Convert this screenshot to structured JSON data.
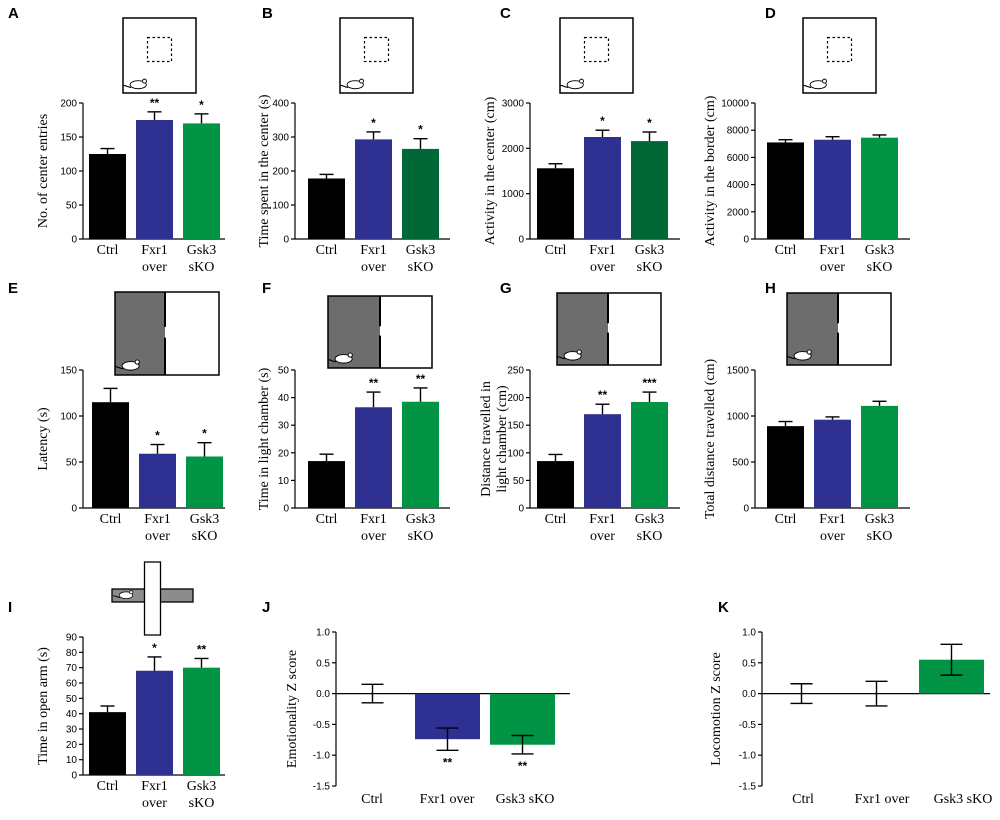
{
  "colors": {
    "ctrl": "#000000",
    "fxr1": "#2e3192",
    "gsk3": "#009444",
    "gsk3_dark": "#006837",
    "chamber_dark": "#6d6d6d",
    "arm_gray": "#8c8c8c"
  },
  "chart_data": [
    {
      "panel": "A",
      "type": "bar",
      "title": "",
      "xlabel": "",
      "ylabel": "No. of center entries",
      "ylim": [
        0,
        200
      ],
      "yticks": [
        0,
        50,
        100,
        150,
        200
      ],
      "categories": [
        "Ctrl",
        "Fxr1 over",
        "Gsk3 sKO"
      ],
      "series": [
        {
          "name": "mean",
          "values": [
            125,
            175,
            170
          ]
        }
      ],
      "errors": [
        8,
        12,
        14
      ],
      "significance": [
        "",
        "**",
        "*"
      ],
      "bar_colors": [
        "ctrl",
        "fxr1",
        "gsk3"
      ],
      "icon": "open-field"
    },
    {
      "panel": "B",
      "type": "bar",
      "title": "",
      "xlabel": "",
      "ylabel": "Time spent in the center (s)",
      "ylim": [
        0,
        400
      ],
      "yticks": [
        0,
        100,
        200,
        300,
        400
      ],
      "categories": [
        "Ctrl",
        "Fxr1 over",
        "Gsk3 sKO"
      ],
      "series": [
        {
          "name": "mean",
          "values": [
            178,
            293,
            265
          ]
        }
      ],
      "errors": [
        12,
        22,
        30
      ],
      "significance": [
        "",
        "*",
        "*"
      ],
      "bar_colors": [
        "ctrl",
        "fxr1",
        "gsk3_dark"
      ],
      "icon": "open-field"
    },
    {
      "panel": "C",
      "type": "bar",
      "title": "",
      "xlabel": "",
      "ylabel": "Activity in the center (cm)",
      "ylim": [
        0,
        3000
      ],
      "yticks": [
        0,
        1000,
        2000,
        3000
      ],
      "categories": [
        "Ctrl",
        "Fxr1 over",
        "Gsk3 sKO"
      ],
      "series": [
        {
          "name": "mean",
          "values": [
            1560,
            2250,
            2160
          ]
        }
      ],
      "errors": [
        100,
        150,
        200
      ],
      "significance": [
        "",
        "*",
        "*"
      ],
      "bar_colors": [
        "ctrl",
        "fxr1",
        "gsk3_dark"
      ],
      "icon": "open-field"
    },
    {
      "panel": "D",
      "type": "bar",
      "title": "",
      "xlabel": "",
      "ylabel": "Activity in the border (cm)",
      "ylim": [
        0,
        10000
      ],
      "yticks": [
        0,
        2000,
        4000,
        6000,
        8000,
        10000
      ],
      "categories": [
        "Ctrl",
        "Fxr1 over",
        "Gsk3 sKO"
      ],
      "series": [
        {
          "name": "mean",
          "values": [
            7100,
            7300,
            7450
          ]
        }
      ],
      "errors": [
        200,
        220,
        200
      ],
      "significance": [
        "",
        "",
        ""
      ],
      "bar_colors": [
        "ctrl",
        "fxr1",
        "gsk3"
      ],
      "icon": "open-field"
    },
    {
      "panel": "E",
      "type": "bar",
      "title": "",
      "xlabel": "",
      "ylabel": "Latency (s)",
      "ylim": [
        0,
        150
      ],
      "yticks": [
        0,
        50,
        100,
        150
      ],
      "categories": [
        "Ctrl",
        "Fxr1 over",
        "Gsk3 sKO"
      ],
      "series": [
        {
          "name": "mean",
          "values": [
            115,
            59,
            56
          ]
        }
      ],
      "errors": [
        15,
        10,
        15
      ],
      "significance": [
        "",
        "*",
        "*"
      ],
      "bar_colors": [
        "ctrl",
        "fxr1",
        "gsk3"
      ],
      "icon": "light-dark"
    },
    {
      "panel": "F",
      "type": "bar",
      "title": "",
      "xlabel": "",
      "ylabel": "Time in light chamber (s)",
      "ylim": [
        0,
        50
      ],
      "yticks": [
        0,
        10,
        20,
        30,
        40,
        50
      ],
      "categories": [
        "Ctrl",
        "Fxr1 over",
        "Gsk3 sKO"
      ],
      "series": [
        {
          "name": "mean",
          "values": [
            17,
            36.5,
            38.5
          ]
        }
      ],
      "errors": [
        2.5,
        5.5,
        5
      ],
      "significance": [
        "",
        "**",
        "**"
      ],
      "bar_colors": [
        "ctrl",
        "fxr1",
        "gsk3"
      ],
      "icon": "light-dark"
    },
    {
      "panel": "G",
      "type": "bar",
      "title": "",
      "xlabel": "",
      "ylabel": "Distance travelled in light chamber (cm)",
      "ylim": [
        0,
        250
      ],
      "yticks": [
        0,
        50,
        100,
        150,
        200,
        250
      ],
      "categories": [
        "Ctrl",
        "Fxr1 over",
        "Gsk3 sKO"
      ],
      "series": [
        {
          "name": "mean",
          "values": [
            85,
            170,
            192
          ]
        }
      ],
      "errors": [
        12,
        18,
        18
      ],
      "significance": [
        "",
        "**",
        "***"
      ],
      "bar_colors": [
        "ctrl",
        "fxr1",
        "gsk3"
      ],
      "icon": "light-dark"
    },
    {
      "panel": "H",
      "type": "bar",
      "title": "",
      "xlabel": "",
      "ylabel": "Total distance travelled (cm)",
      "ylim": [
        0,
        1500
      ],
      "yticks": [
        0,
        500,
        1000,
        1500
      ],
      "categories": [
        "Ctrl",
        "Fxr1 over",
        "Gsk3 sKO"
      ],
      "series": [
        {
          "name": "mean",
          "values": [
            890,
            960,
            1110
          ]
        }
      ],
      "errors": [
        50,
        30,
        50
      ],
      "significance": [
        "",
        "",
        ""
      ],
      "bar_colors": [
        "ctrl",
        "fxr1",
        "gsk3"
      ],
      "icon": "light-dark"
    },
    {
      "panel": "I",
      "type": "bar",
      "title": "",
      "xlabel": "",
      "ylabel": "Time in open arm (s)",
      "ylim": [
        0,
        90
      ],
      "yticks": [
        0,
        10,
        20,
        30,
        40,
        50,
        60,
        70,
        80,
        90
      ],
      "categories": [
        "Ctrl",
        "Fxr1 over",
        "Gsk3 sKO"
      ],
      "series": [
        {
          "name": "mean",
          "values": [
            41,
            68,
            70
          ]
        }
      ],
      "errors": [
        4,
        9,
        6
      ],
      "significance": [
        "",
        "*",
        "**"
      ],
      "bar_colors": [
        "ctrl",
        "fxr1",
        "gsk3"
      ],
      "icon": "plus-maze"
    },
    {
      "panel": "J",
      "type": "bar",
      "title": "",
      "xlabel": "",
      "ylabel": "Emotionality Z score",
      "ylim": [
        -1.5,
        1.0
      ],
      "yticks": [
        -1.5,
        -1.0,
        -0.5,
        0.0,
        0.5,
        1.0
      ],
      "categories": [
        "Ctrl",
        "Fxr1 over",
        "Gsk3 sKO"
      ],
      "series": [
        {
          "name": "mean",
          "values": [
            0.0,
            -0.74,
            -0.83
          ]
        }
      ],
      "errors": [
        0.15,
        0.18,
        0.15
      ],
      "significance": [
        "",
        "**",
        "**"
      ],
      "bar_colors": [
        "ctrl",
        "fxr1",
        "gsk3"
      ],
      "icon": ""
    },
    {
      "panel": "K",
      "type": "bar",
      "title": "",
      "xlabel": "",
      "ylabel": "Locomotion Z score",
      "ylim": [
        -1.5,
        1.0
      ],
      "yticks": [
        -1.5,
        -1.0,
        -0.5,
        0.0,
        0.5,
        1.0
      ],
      "categories": [
        "Ctrl",
        "Fxr1 over",
        "Gsk3 sKO"
      ],
      "series": [
        {
          "name": "mean",
          "values": [
            0.0,
            0.0,
            0.55
          ]
        }
      ],
      "errors": [
        0.16,
        0.2,
        0.25
      ],
      "significance": [
        "",
        "",
        ""
      ],
      "bar_colors": [
        "ctrl",
        "fxr1",
        "gsk3"
      ],
      "icon": ""
    }
  ]
}
